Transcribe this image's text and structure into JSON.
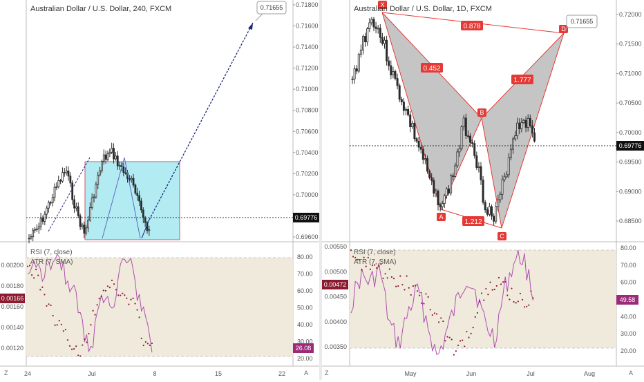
{
  "left": {
    "title": "Australian Dollar / U.S. Dollar, 240, FXCM",
    "price_badge": "0.69776",
    "target_label": "0.71655",
    "price_ticks": [
      "0.71800",
      "0.71600",
      "0.71400",
      "0.71200",
      "0.71000",
      "0.70800",
      "0.70600",
      "0.70400",
      "0.70200",
      "0.70000",
      "0.69800",
      "0.69600"
    ],
    "indicator_labels": [
      "RSI (7, close)",
      "ATR (7, SMA)"
    ],
    "atr_ticks": [
      "0.00200",
      "0.00180",
      "0.00160",
      "0.00140",
      "0.00120"
    ],
    "atr_badge": "0.00166",
    "rsi_ticks": [
      "80.00",
      "70.00",
      "60.00",
      "50.00",
      "40.00",
      "30.00",
      "20.00"
    ],
    "rsi_badge": "26.08",
    "x_ticks": [
      "24",
      "Jul",
      "8",
      "15",
      "22"
    ],
    "corner_z": "Z",
    "corner_a": "A"
  },
  "right": {
    "title": "Australian Dollar / U.S. Dollar, 1D, FXCM",
    "price_badge": "0.69776",
    "target_label": "0.71655",
    "price_ticks": [
      "0.72000",
      "0.71500",
      "0.71000",
      "0.70500",
      "0.70000",
      "0.69500",
      "0.69000",
      "0.68500"
    ],
    "pattern_points": [
      "X",
      "A",
      "B",
      "C",
      "D"
    ],
    "ratios": [
      "0.452",
      "0.878",
      "1.777",
      "1.212"
    ],
    "indicator_labels": [
      "RSI (7, close)",
      "ATR (7, SMA)"
    ],
    "atr_ticks": [
      "0.00550",
      "0.00500",
      "0.00450",
      "0.00400",
      "0.00350"
    ],
    "atr_badge": "0.00472",
    "rsi_ticks": [
      "80.00",
      "70.00",
      "60.00",
      "50.00",
      "40.00",
      "30.00",
      "20.00"
    ],
    "rsi_badge": "49.58",
    "x_ticks": [
      "May",
      "Jun",
      "Jul",
      "Aug"
    ],
    "corner_z": "Z",
    "corner_a": "A"
  },
  "colors": {
    "up": "#2b2b2b",
    "down": "#2b2b2b",
    "rsi_line": "#b04db0",
    "atr_dots": "#8b1a2e",
    "rect_fill": "#b2ebf2",
    "rect_border": "#d0576f",
    "arrow": "#1a237e",
    "pattern_fill": "#9e9e9e",
    "pattern_line": "#e53935",
    "label_red": "#e53935",
    "rsi_band": "#efeadb",
    "badge_dark": "#111111",
    "badge_atr": "#8b1a2e",
    "badge_rsi": "#9c2a7a"
  }
}
